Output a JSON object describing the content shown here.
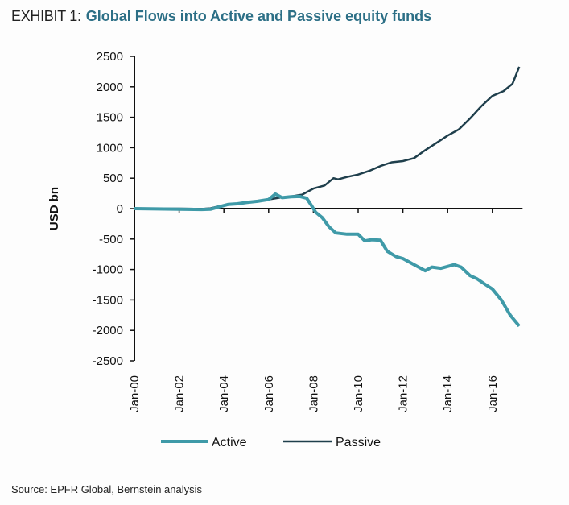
{
  "header": {
    "exhibit": "EXHIBIT 1:",
    "title": "Global Flows into Active and Passive equity funds"
  },
  "source": "Source: EPFR Global, Bernstein analysis",
  "chart_data": {
    "type": "line",
    "title": "Global Flows into Active and Passive equity funds",
    "xlabel": "",
    "ylabel": "USD bn",
    "ylim": [
      -2500,
      2500
    ],
    "yticks": [
      2500,
      2000,
      1500,
      1000,
      500,
      0,
      -500,
      -1000,
      -1500,
      -2000,
      -2500
    ],
    "xlim": [
      2000,
      2017.4
    ],
    "xticks": [
      {
        "v": 2000,
        "label": "Jan-00"
      },
      {
        "v": 2002,
        "label": "Jan-02"
      },
      {
        "v": 2004,
        "label": "Jan-04"
      },
      {
        "v": 2006,
        "label": "Jan-06"
      },
      {
        "v": 2008,
        "label": "Jan-08"
      },
      {
        "v": 2010,
        "label": "Jan-10"
      },
      {
        "v": 2012,
        "label": "Jan-12"
      },
      {
        "v": 2014,
        "label": "Jan-14"
      },
      {
        "v": 2016,
        "label": "Jan-16"
      }
    ],
    "legend_position": "bottom",
    "grid": false,
    "series": [
      {
        "name": "Active",
        "color": "#3f9aa8",
        "x": [
          2000,
          2001,
          2002,
          2003,
          2003.4,
          2003.8,
          2004.2,
          2004.6,
          2005,
          2005.5,
          2006,
          2006.3,
          2006.6,
          2007,
          2007.4,
          2007.7,
          2007.9,
          2008.1,
          2008.4,
          2008.7,
          2009,
          2009.5,
          2010,
          2010.3,
          2010.6,
          2011,
          2011.3,
          2011.7,
          2012,
          2012.5,
          2013,
          2013.3,
          2013.7,
          2014,
          2014.3,
          2014.6,
          2015,
          2015.3,
          2015.7,
          2016,
          2016.4,
          2016.8,
          2017.2
        ],
        "y": [
          0,
          -5,
          -10,
          -15,
          -10,
          30,
          70,
          80,
          100,
          120,
          150,
          240,
          180,
          195,
          200,
          170,
          60,
          -60,
          -150,
          -300,
          -400,
          -420,
          -420,
          -530,
          -510,
          -520,
          -700,
          -790,
          -820,
          -920,
          -1020,
          -960,
          -980,
          -950,
          -920,
          -960,
          -1100,
          -1150,
          -1250,
          -1320,
          -1500,
          -1750,
          -1930
        ]
      },
      {
        "name": "Passive",
        "color": "#1f3f4c",
        "x": [
          2000,
          2001,
          2002,
          2003,
          2003.4,
          2003.8,
          2004.2,
          2004.6,
          2005,
          2005.5,
          2006,
          2006.5,
          2007,
          2007.5,
          2008,
          2008.5,
          2008.9,
          2009.1,
          2009.5,
          2010,
          2010.5,
          2011,
          2011.5,
          2012,
          2012.5,
          2013,
          2013.5,
          2014,
          2014.5,
          2015,
          2015.5,
          2016,
          2016.5,
          2016.9,
          2017.2
        ],
        "y": [
          0,
          0,
          0,
          -5,
          5,
          40,
          70,
          80,
          100,
          120,
          150,
          180,
          200,
          230,
          330,
          380,
          500,
          480,
          520,
          560,
          620,
          700,
          760,
          780,
          830,
          960,
          1080,
          1200,
          1300,
          1480,
          1680,
          1850,
          1930,
          2050,
          2330
        ]
      }
    ]
  }
}
